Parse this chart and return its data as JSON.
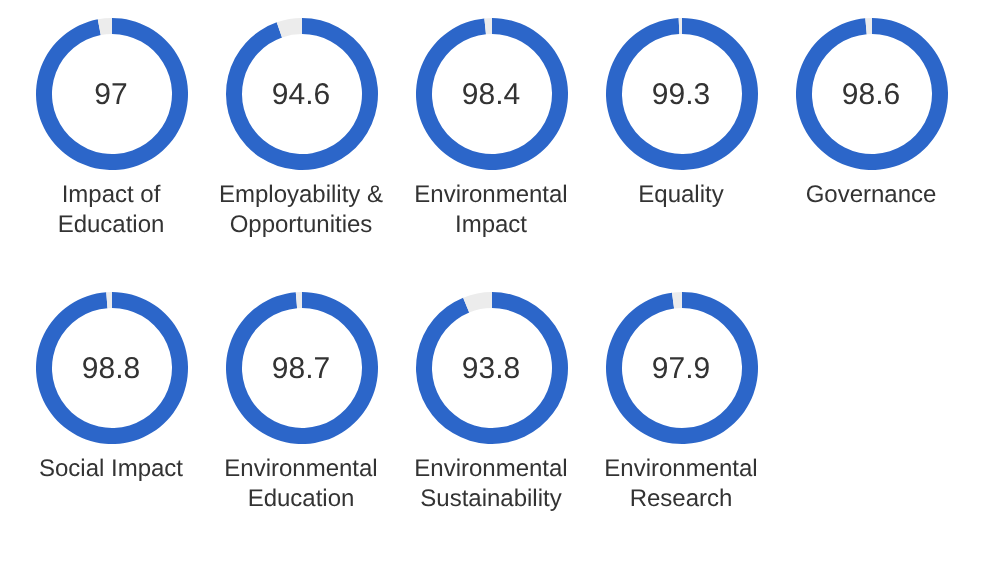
{
  "chart_data": [
    {
      "type": "donut",
      "title": "Impact of Education",
      "categories": [
        null,
        null
      ],
      "values": [
        97,
        3
      ],
      "colors": [
        "#2c66c9",
        "#ececec"
      ],
      "value_labels": [
        "97",
        null
      ]
    },
    {
      "type": "donut",
      "title": "Employability & Opportunities",
      "categories": [
        null,
        null
      ],
      "values": [
        94.6,
        5.4
      ],
      "colors": [
        "#2c66c9",
        "#ececec"
      ],
      "value_labels": [
        "94.6",
        null
      ]
    },
    {
      "type": "donut",
      "title": "Environmental Impact",
      "categories": [
        null,
        null
      ],
      "values": [
        98.4,
        1.6
      ],
      "colors": [
        "#2c66c9",
        "#ececec"
      ],
      "value_labels": [
        "98.4",
        null
      ]
    },
    {
      "type": "donut",
      "title": "Equality",
      "categories": [
        null,
        null
      ],
      "values": [
        99.3,
        0.7
      ],
      "colors": [
        "#2c66c9",
        "#ececec"
      ],
      "value_labels": [
        "99.3",
        null
      ]
    },
    {
      "type": "donut",
      "title": "Governance",
      "categories": [
        null,
        null
      ],
      "values": [
        98.6,
        1.4
      ],
      "colors": [
        "#2c66c9",
        "#ececec"
      ],
      "value_labels": [
        "98.6",
        null
      ]
    },
    {
      "type": "donut",
      "title": "Social Impact",
      "categories": [
        null,
        null
      ],
      "values": [
        98.8,
        1.2
      ],
      "colors": [
        "#2c66c9",
        "#ececec"
      ],
      "value_labels": [
        "98.8",
        null
      ]
    },
    {
      "type": "donut",
      "title": "Environmental Education",
      "categories": [
        null,
        null
      ],
      "values": [
        98.7,
        1.3
      ],
      "colors": [
        "#2c66c9",
        "#ececec"
      ],
      "value_labels": [
        "98.7",
        null
      ]
    },
    {
      "type": "donut",
      "title": "Environmental Sustainability",
      "categories": [
        null,
        null
      ],
      "values": [
        93.8,
        6.2
      ],
      "colors": [
        "#2c66c9",
        "#ececec"
      ],
      "value_labels": [
        "93.8",
        null
      ]
    },
    {
      "type": "donut",
      "title": "Environmental Research",
      "categories": [
        null,
        null
      ],
      "values": [
        97.9,
        2.1
      ],
      "colors": [
        "#2c66c9",
        "#ececec"
      ],
      "value_labels": [
        "97.9",
        null
      ]
    }
  ]
}
